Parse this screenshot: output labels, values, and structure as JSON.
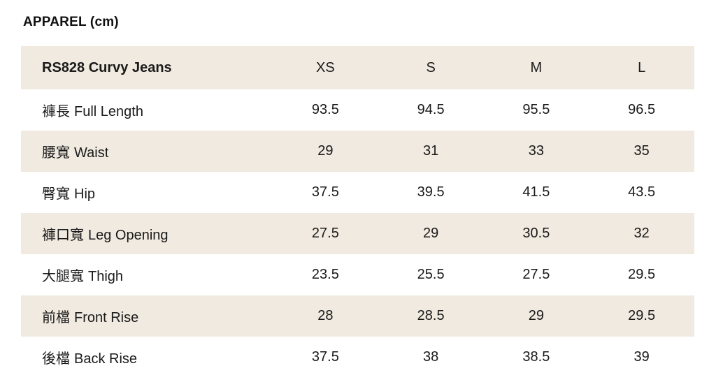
{
  "page": {
    "title": "APPAREL (cm)"
  },
  "table": {
    "product": "RS828 Curvy Jeans",
    "sizes": [
      "XS",
      "S",
      "M",
      "L"
    ],
    "rows": [
      {
        "label_zh": "褲長",
        "label_en": "Full Length",
        "values": [
          "93.5",
          "94.5",
          "95.5",
          "96.5"
        ]
      },
      {
        "label_zh": "腰寬",
        "label_en": "Waist",
        "values": [
          "29",
          "31",
          "33",
          "35"
        ]
      },
      {
        "label_zh": "臀寬",
        "label_en": "Hip",
        "values": [
          "37.5",
          "39.5",
          "41.5",
          "43.5"
        ]
      },
      {
        "label_zh": "褲口寬",
        "label_en": "Leg Opening",
        "values": [
          "27.5",
          "29",
          "30.5",
          "32"
        ]
      },
      {
        "label_zh": "大腿寬",
        "label_en": "Thigh",
        "values": [
          "23.5",
          "25.5",
          "27.5",
          "29.5"
        ]
      },
      {
        "label_zh": "前檔",
        "label_en": "Front Rise",
        "values": [
          "28",
          "28.5",
          "29",
          "29.5"
        ]
      },
      {
        "label_zh": "後檔",
        "label_en": "Back Rise",
        "values": [
          "37.5",
          "38",
          "38.5",
          "39"
        ]
      }
    ],
    "colors": {
      "stripe_bg": "#F1EAE0",
      "text": "#1A1A1A",
      "background": "#FFFFFF"
    }
  }
}
